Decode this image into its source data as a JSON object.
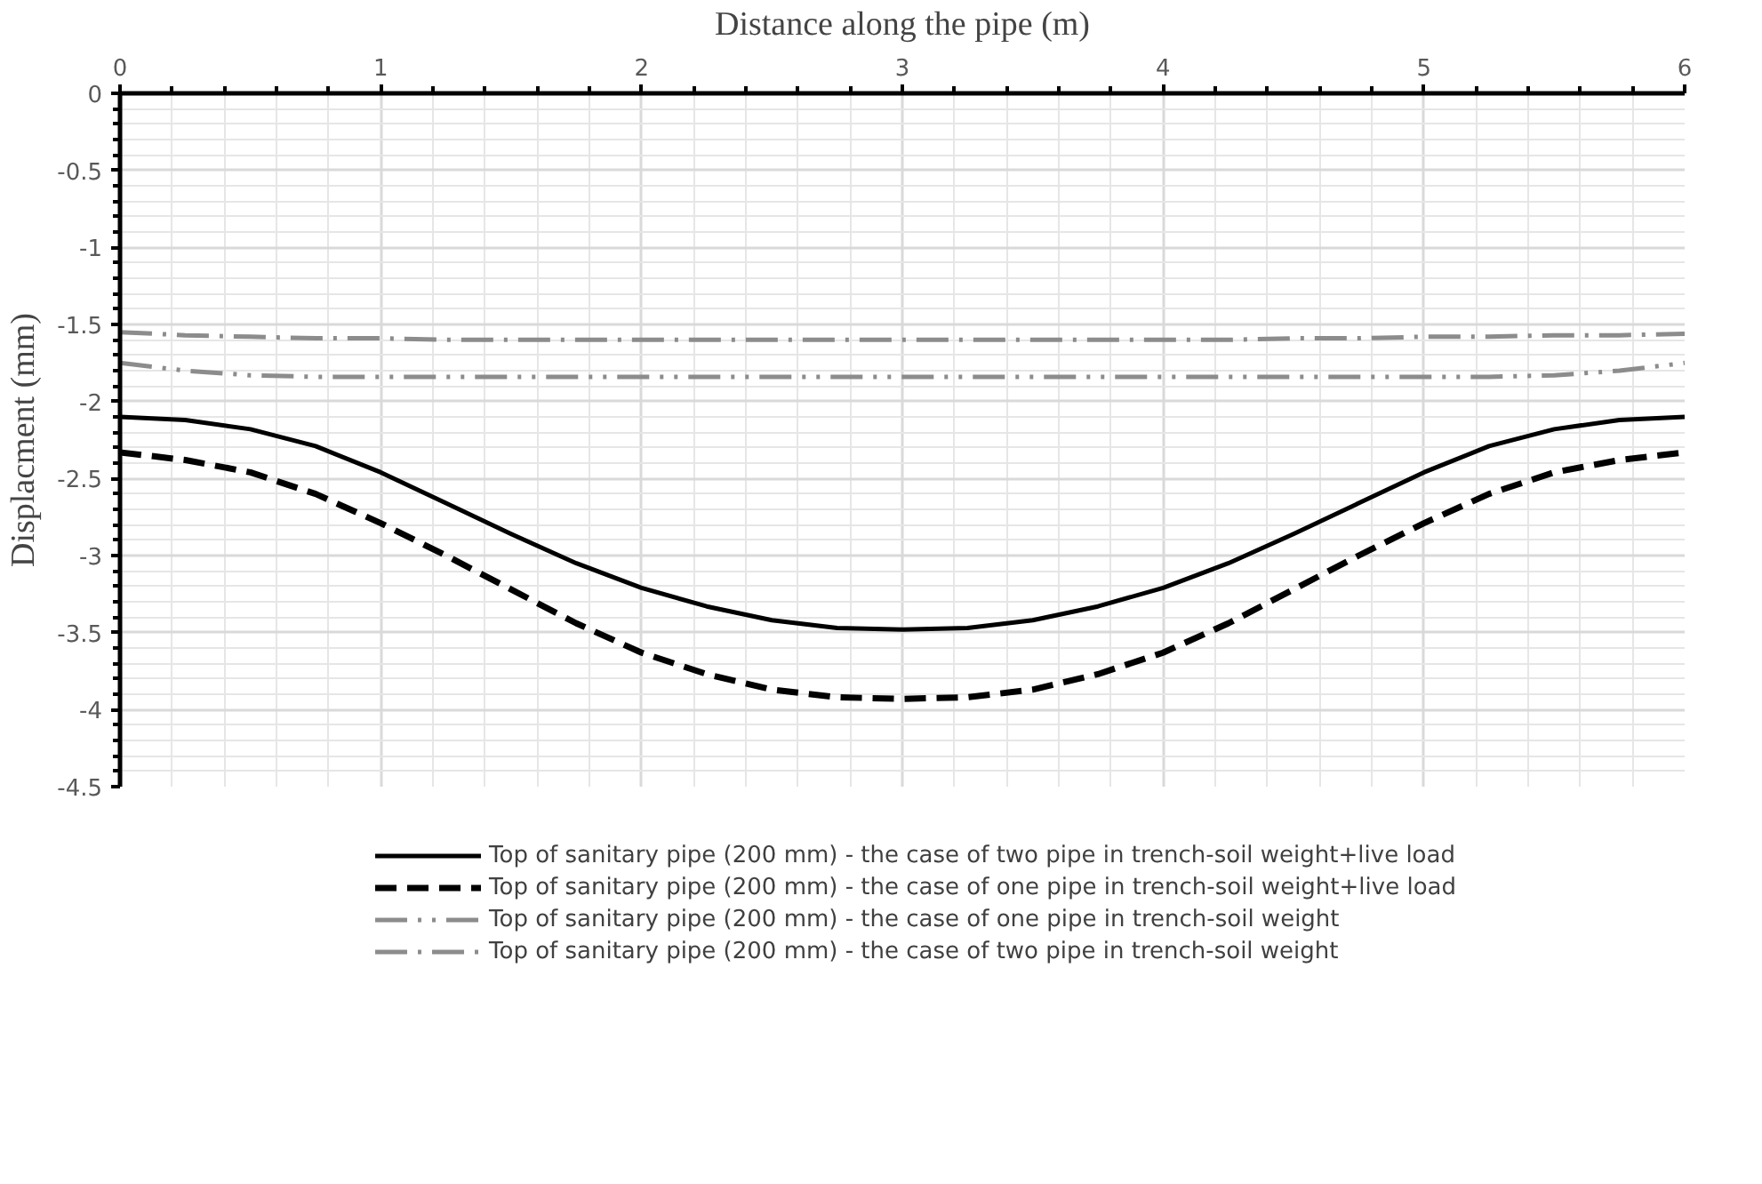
{
  "chart_data": {
    "type": "line",
    "xlabel": "Distance along the pipe (m)",
    "ylabel": "Displacment (mm)",
    "x": [
      0,
      0.25,
      0.5,
      0.75,
      1,
      1.25,
      1.5,
      1.75,
      2,
      2.25,
      2.5,
      2.75,
      3,
      3.25,
      3.5,
      3.75,
      4,
      4.25,
      4.5,
      4.75,
      5,
      5.25,
      5.5,
      5.75,
      6
    ],
    "xlim": [
      0,
      6
    ],
    "xticks": [
      0,
      1,
      2,
      3,
      4,
      5,
      6
    ],
    "ylim": [
      -4.5,
      0
    ],
    "yticks": [
      0,
      -0.5,
      -1,
      -1.5,
      -2,
      -2.5,
      -3,
      -3.5,
      -4,
      -4.5
    ],
    "grid": true,
    "legend": "bottom",
    "series": [
      {
        "name": "Top of sanitary pipe (200 mm) - the case of two pipe in trench-soil weight+live load",
        "color": "#000000",
        "line_style": "solid",
        "values": [
          -2.1,
          -2.12,
          -2.18,
          -2.29,
          -2.46,
          -2.66,
          -2.86,
          -3.05,
          -3.21,
          -3.33,
          -3.42,
          -3.47,
          -3.48,
          -3.47,
          -3.42,
          -3.33,
          -3.21,
          -3.05,
          -2.86,
          -2.66,
          -2.46,
          -2.29,
          -2.18,
          -2.12,
          -2.1
        ]
      },
      {
        "name": "Top of sanitary pipe (200 mm) - the case of one pipe in trench-soil weight+live load",
        "color": "#000000",
        "line_style": "dashed",
        "values": [
          -2.33,
          -2.38,
          -2.46,
          -2.6,
          -2.79,
          -3.0,
          -3.22,
          -3.44,
          -3.63,
          -3.77,
          -3.87,
          -3.92,
          -3.93,
          -3.92,
          -3.87,
          -3.77,
          -3.63,
          -3.44,
          -3.22,
          -3.0,
          -2.79,
          -2.6,
          -2.46,
          -2.38,
          -2.33
        ]
      },
      {
        "name": "Top of sanitary pipe (200 mm) - the case of one pipe in trench-soil weight",
        "color": "#8c8c8c",
        "line_style": "dashdotdot",
        "values": [
          -1.75,
          -1.8,
          -1.83,
          -1.84,
          -1.84,
          -1.84,
          -1.84,
          -1.84,
          -1.84,
          -1.84,
          -1.84,
          -1.84,
          -1.84,
          -1.84,
          -1.84,
          -1.84,
          -1.84,
          -1.84,
          -1.84,
          -1.84,
          -1.84,
          -1.84,
          -1.83,
          -1.8,
          -1.75
        ]
      },
      {
        "name": "Top of sanitary pipe (200 mm) - the case of two pipe in trench-soil weight",
        "color": "#8c8c8c",
        "line_style": "dashdot",
        "values": [
          -1.55,
          -1.57,
          -1.58,
          -1.59,
          -1.59,
          -1.6,
          -1.6,
          -1.6,
          -1.6,
          -1.6,
          -1.6,
          -1.6,
          -1.6,
          -1.6,
          -1.6,
          -1.6,
          -1.6,
          -1.6,
          -1.59,
          -1.59,
          -1.58,
          -1.58,
          -1.57,
          -1.57,
          -1.56
        ]
      }
    ]
  }
}
